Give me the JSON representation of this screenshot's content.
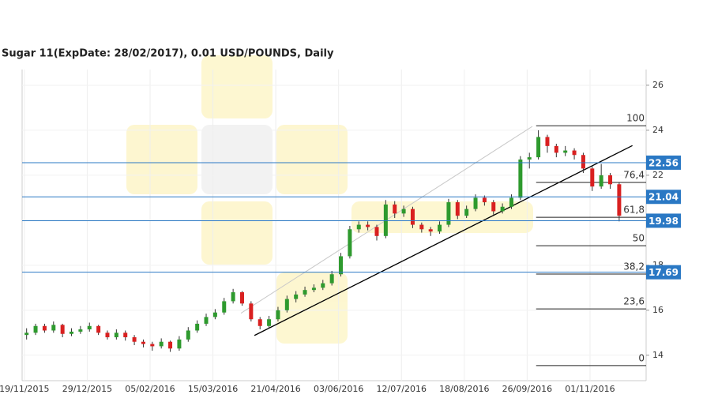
{
  "chart_data": {
    "type": "candlestick",
    "title": "Sugar 11(ExpDate: 28/02/2017), 0.01 USD/POUNDS, Daily",
    "x": [
      1,
      5,
      9,
      13,
      17,
      21,
      25,
      29,
      33,
      37,
      41,
      45,
      49,
      53,
      57,
      61,
      65,
      69,
      73,
      77,
      81,
      85,
      89,
      93,
      97,
      101,
      105,
      109,
      113,
      117,
      121,
      125,
      129,
      133,
      137,
      141,
      145,
      149,
      153,
      157,
      161,
      165,
      169,
      173,
      177,
      181,
      185,
      189,
      193,
      197,
      201,
      205,
      209,
      213,
      217,
      221,
      225,
      229,
      233,
      237,
      241,
      245,
      249,
      253,
      257,
      261,
      265
    ],
    "open": [
      14.9,
      15.0,
      15.3,
      15.1,
      15.35,
      14.95,
      15.05,
      15.15,
      15.3,
      15.0,
      14.8,
      15.0,
      14.8,
      14.6,
      14.5,
      14.4,
      14.6,
      14.3,
      14.7,
      15.1,
      15.4,
      15.7,
      15.9,
      16.4,
      16.8,
      16.3,
      15.6,
      15.3,
      15.6,
      16.0,
      16.5,
      16.7,
      16.9,
      17.0,
      17.2,
      17.6,
      18.4,
      19.6,
      19.8,
      19.7,
      19.3,
      20.7,
      20.3,
      20.5,
      19.8,
      19.6,
      19.5,
      19.8,
      20.8,
      20.2,
      20.5,
      21.0,
      20.8,
      20.4,
      20.6,
      21.0,
      22.7,
      22.8,
      23.7,
      23.3,
      23.0,
      23.1,
      22.9,
      22.3,
      21.5,
      22.0,
      21.6
    ],
    "high": [
      15.2,
      15.4,
      15.4,
      15.5,
      15.4,
      15.2,
      15.3,
      15.45,
      15.35,
      15.1,
      15.15,
      15.1,
      14.9,
      14.7,
      14.6,
      14.75,
      14.65,
      14.85,
      15.25,
      15.55,
      15.85,
      16.05,
      16.55,
      16.95,
      16.85,
      16.4,
      15.7,
      15.75,
      16.15,
      16.65,
      16.85,
      17.05,
      17.15,
      17.35,
      17.75,
      18.55,
      19.75,
      19.95,
      19.95,
      19.8,
      20.9,
      20.85,
      20.65,
      20.6,
      19.9,
      19.7,
      19.95,
      20.95,
      20.9,
      20.65,
      21.15,
      21.1,
      20.9,
      20.75,
      21.15,
      22.85,
      23.0,
      24.0,
      23.8,
      23.4,
      23.3,
      23.2,
      23.0,
      22.4,
      22.5,
      22.1,
      21.7
    ],
    "low": [
      14.7,
      14.9,
      15.0,
      15.0,
      14.8,
      14.85,
      14.95,
      15.05,
      14.9,
      14.7,
      14.7,
      14.65,
      14.45,
      14.35,
      14.2,
      14.3,
      14.15,
      14.2,
      14.6,
      15.0,
      15.3,
      15.6,
      15.8,
      16.3,
      16.2,
      15.5,
      15.15,
      15.2,
      15.5,
      15.9,
      16.35,
      16.6,
      16.8,
      16.9,
      17.1,
      17.5,
      18.3,
      19.45,
      19.55,
      19.1,
      19.2,
      20.1,
      20.15,
      19.65,
      19.45,
      19.3,
      19.4,
      19.7,
      20.05,
      20.1,
      20.4,
      20.65,
      20.25,
      20.3,
      20.5,
      20.9,
      22.3,
      22.7,
      23.0,
      22.8,
      22.85,
      22.7,
      22.1,
      21.3,
      21.4,
      21.4,
      19.95
    ],
    "close": [
      15.0,
      15.3,
      15.1,
      15.35,
      14.95,
      15.05,
      15.15,
      15.3,
      15.0,
      14.8,
      15.0,
      14.8,
      14.6,
      14.5,
      14.4,
      14.6,
      14.3,
      14.7,
      15.1,
      15.4,
      15.7,
      15.9,
      16.4,
      16.8,
      16.3,
      15.6,
      15.3,
      15.6,
      16.0,
      16.5,
      16.7,
      16.9,
      17.0,
      17.2,
      17.6,
      18.4,
      19.6,
      19.8,
      19.7,
      19.3,
      20.7,
      20.3,
      20.5,
      19.8,
      19.6,
      19.5,
      19.8,
      20.8,
      20.2,
      20.5,
      21.0,
      20.8,
      20.4,
      20.6,
      21.0,
      22.7,
      22.8,
      23.7,
      23.3,
      23.0,
      23.1,
      22.9,
      22.3,
      21.5,
      22.0,
      21.6,
      20.2
    ],
    "up_color": "#2e9a2e",
    "down_color": "#d92020",
    "xlim": [
      -1,
      277
    ],
    "ylim": [
      12.87,
      26.7
    ],
    "xticks": [
      {
        "value": 0,
        "label": "19/11/2015"
      },
      {
        "value": 28,
        "label": "29/12/2015"
      },
      {
        "value": 56,
        "label": "05/02/2016"
      },
      {
        "value": 84,
        "label": "15/03/2016"
      },
      {
        "value": 112,
        "label": "21/04/2016"
      },
      {
        "value": 140,
        "label": "03/06/2016"
      },
      {
        "value": 168,
        "label": "12/07/2016"
      },
      {
        "value": 196,
        "label": "18/08/2016"
      },
      {
        "value": 224,
        "label": "26/09/2016"
      },
      {
        "value": 252,
        "label": "01/11/2016"
      }
    ],
    "yticks": [
      14,
      16,
      18,
      20,
      22,
      24,
      26
    ],
    "grid": true,
    "levels": [
      22.56,
      21.04,
      19.98,
      17.69
    ],
    "level_color": "#2a78c4",
    "fibonacci": {
      "x": [
        228,
        277
      ],
      "levels": [
        {
          "value": 24.2,
          "label": "100"
        },
        {
          "value": 21.68,
          "label": "76,4"
        },
        {
          "value": 20.13,
          "label": "61,8"
        },
        {
          "value": 18.87,
          "label": "50"
        },
        {
          "value": 17.61,
          "label": "38,2"
        },
        {
          "value": 16.06,
          "label": "23,6"
        },
        {
          "value": 13.54,
          "label": "0"
        }
      ]
    },
    "trendlines": [
      {
        "x": [
          96.5,
          226.3
        ],
        "y": [
          15.87,
          24.17
        ],
        "color": "#c8c8c8"
      },
      {
        "x": [
          102.5,
          270.9
        ],
        "y": [
          14.88,
          23.32
        ],
        "color": "#000000"
      }
    ]
  }
}
